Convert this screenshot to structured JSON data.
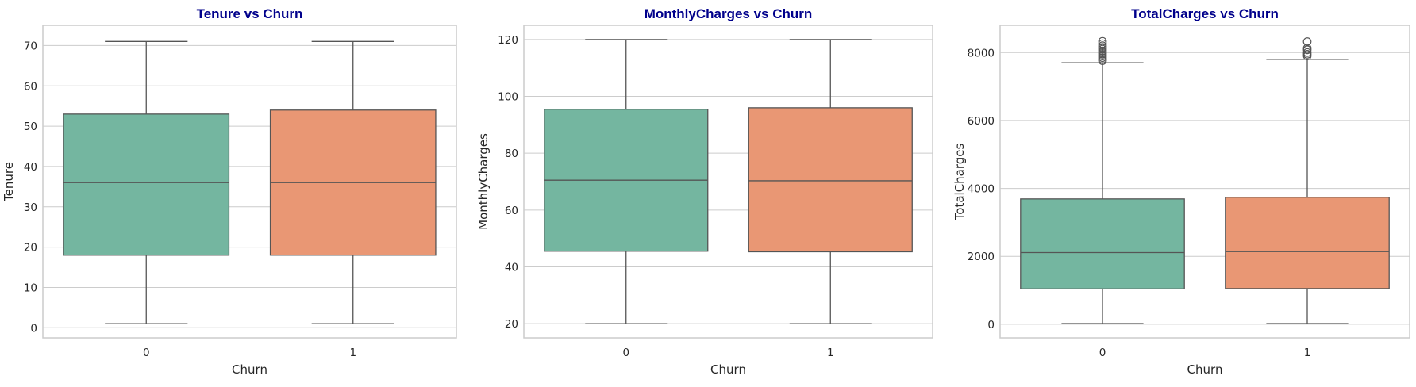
{
  "style": {
    "title_color": "#00008B",
    "box_colors": [
      "#74B6A0",
      "#E99774"
    ],
    "line_color": "#555555",
    "grid_color": "#cccccc",
    "frame_color": "#cccccc"
  },
  "chart_data": [
    {
      "type": "box",
      "title": "Tenure vs Churn",
      "xlabel": "Churn",
      "ylabel": "Tenure",
      "categories": [
        "0",
        "1"
      ],
      "ylim": [
        -2.5,
        75
      ],
      "yticks": [
        0,
        10,
        20,
        30,
        40,
        50,
        60,
        70
      ],
      "ytick_labels": [
        "0",
        "10",
        "20",
        "30",
        "40",
        "50",
        "60",
        "70"
      ],
      "grid": true,
      "boxes": [
        {
          "category": "0",
          "whisker_low": 1,
          "q1": 18,
          "median": 36,
          "q3": 53,
          "whisker_high": 71,
          "outliers": []
        },
        {
          "category": "1",
          "whisker_low": 1,
          "q1": 18,
          "median": 36,
          "q3": 54,
          "whisker_high": 71,
          "outliers": []
        }
      ]
    },
    {
      "type": "box",
      "title": "MonthlyCharges vs Churn",
      "xlabel": "Churn",
      "ylabel": "MonthlyCharges",
      "categories": [
        "0",
        "1"
      ],
      "ylim": [
        15,
        125
      ],
      "yticks": [
        20,
        40,
        60,
        80,
        100,
        120
      ],
      "ytick_labels": [
        "20",
        "40",
        "60",
        "80",
        "100",
        "120"
      ],
      "grid": true,
      "boxes": [
        {
          "category": "0",
          "whisker_low": 20,
          "q1": 45.5,
          "median": 70.5,
          "q3": 95.5,
          "whisker_high": 120,
          "outliers": []
        },
        {
          "category": "1",
          "whisker_low": 20,
          "q1": 45.3,
          "median": 70.3,
          "q3": 96,
          "whisker_high": 120,
          "outliers": []
        }
      ]
    },
    {
      "type": "box",
      "title": "TotalCharges vs Churn",
      "xlabel": "Churn",
      "ylabel": "TotalCharges",
      "categories": [
        "0",
        "1"
      ],
      "ylim": [
        -400,
        8800
      ],
      "yticks": [
        0,
        2000,
        4000,
        6000,
        8000
      ],
      "ytick_labels": [
        "0",
        "2000",
        "4000",
        "6000",
        "8000"
      ],
      "grid": true,
      "boxes": [
        {
          "category": "0",
          "whisker_low": 20,
          "q1": 1040,
          "median": 2110,
          "q3": 3690,
          "whisker_high": 7700,
          "outliers": [
            7760,
            7800,
            7850,
            7900,
            7950,
            8000,
            8050,
            8100,
            8150,
            8200,
            8260,
            8330
          ]
        },
        {
          "category": "1",
          "whisker_low": 20,
          "q1": 1050,
          "median": 2140,
          "q3": 3740,
          "whisker_high": 7800,
          "outliers": [
            7900,
            7950,
            8000,
            8080,
            8130,
            8320
          ]
        }
      ]
    }
  ]
}
